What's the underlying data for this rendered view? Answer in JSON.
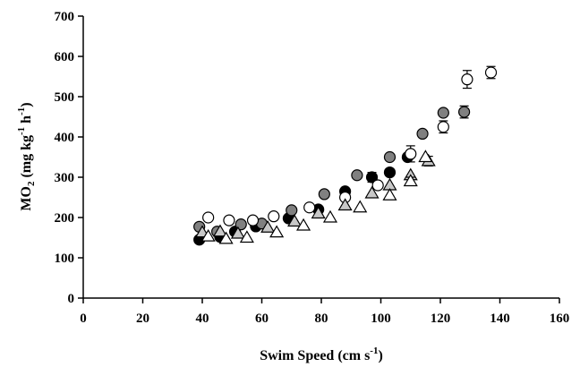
{
  "chart_data": {
    "type": "scatter",
    "title": "",
    "xlabel": {
      "main": "Swim Speed (cm s",
      "sup": "-1",
      "tail": ")"
    },
    "ylabel": {
      "pre": "MO",
      "sub": "2",
      "mid": " (mg kg",
      "sup1": "-1",
      "sp": " h",
      "sup2": "-1",
      "tail": ")"
    },
    "xlim": [
      0,
      160
    ],
    "ylim": [
      0,
      700
    ],
    "xticks": [
      "0",
      "20",
      "40",
      "60",
      "80",
      "100",
      "120",
      "140",
      "160"
    ],
    "yticks": [
      "0",
      "100",
      "200",
      "300",
      "400",
      "500",
      "600",
      "700"
    ],
    "grid": false,
    "colors": {
      "black": "#000000",
      "gray": "#808080",
      "light": "#c8c8c8",
      "white": "#ffffff"
    },
    "series": [
      {
        "marker": "circle-black",
        "x": [
          39,
          46,
          51,
          58,
          69,
          79,
          88,
          97,
          103,
          109
        ],
        "y": [
          145,
          152,
          165,
          178,
          198,
          220,
          265,
          300,
          312,
          350
        ],
        "err": [
          0,
          0,
          0,
          0,
          0,
          0,
          0,
          12,
          0,
          0
        ]
      },
      {
        "marker": "circle-gray",
        "x": [
          39,
          45,
          53,
          60,
          70,
          81,
          92,
          103,
          114,
          121,
          128
        ],
        "y": [
          177,
          165,
          183,
          185,
          218,
          258,
          305,
          350,
          408,
          460,
          462
        ],
        "err": [
          0,
          0,
          0,
          0,
          0,
          0,
          0,
          0,
          0,
          0,
          15
        ]
      },
      {
        "marker": "circle-white",
        "x": [
          42,
          49,
          57,
          64,
          76,
          88,
          99,
          110,
          121,
          129,
          137
        ],
        "y": [
          200,
          193,
          193,
          203,
          225,
          250,
          280,
          358,
          425,
          543,
          560
        ],
        "err": [
          0,
          0,
          0,
          0,
          0,
          0,
          0,
          20,
          15,
          22,
          15
        ]
      },
      {
        "marker": "triangle-gray",
        "x": [
          40,
          46,
          52,
          62,
          71,
          79,
          88,
          97,
          103,
          110,
          116
        ],
        "y": [
          163,
          165,
          160,
          175,
          190,
          210,
          230,
          260,
          280,
          305,
          340
        ],
        "err": [
          0,
          0,
          0,
          0,
          0,
          0,
          0,
          0,
          0,
          0,
          12
        ]
      },
      {
        "marker": "triangle-white",
        "x": [
          42,
          48,
          55,
          65,
          74,
          83,
          93,
          103,
          110,
          115
        ],
        "y": [
          153,
          147,
          150,
          163,
          180,
          200,
          225,
          255,
          290,
          350
        ],
        "err": [
          0,
          0,
          0,
          0,
          0,
          0,
          0,
          0,
          10,
          0
        ]
      }
    ]
  }
}
